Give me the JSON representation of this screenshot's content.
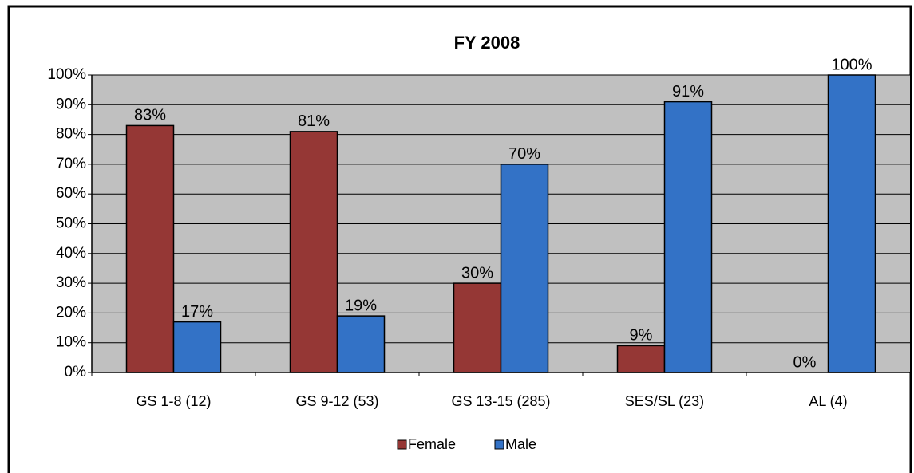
{
  "chart_data": {
    "type": "bar",
    "title": "FY 2008",
    "categories": [
      "GS 1-8 (12)",
      "GS 9-12 (53)",
      "GS 13-15 (285)",
      "SES/SL (23)",
      "AL (4)"
    ],
    "series": [
      {
        "name": "Female",
        "color": "#953735",
        "values": [
          83,
          81,
          30,
          9,
          0
        ],
        "value_labels": [
          "83%",
          "81%",
          "30%",
          "9%",
          "0%"
        ]
      },
      {
        "name": "Male",
        "color": "#3372c6",
        "values": [
          17,
          19,
          70,
          91,
          100
        ],
        "value_labels": [
          "17%",
          "19%",
          "70%",
          "91%",
          "100%"
        ]
      }
    ],
    "ylim": [
      0,
      100
    ],
    "yticks": [
      {
        "value": 0,
        "label": "0%"
      },
      {
        "value": 10,
        "label": "10%"
      },
      {
        "value": 20,
        "label": "20%"
      },
      {
        "value": 30,
        "label": "30%"
      },
      {
        "value": 40,
        "label": "40%"
      },
      {
        "value": 50,
        "label": "50%"
      },
      {
        "value": 60,
        "label": "60%"
      },
      {
        "value": 70,
        "label": "70%"
      },
      {
        "value": 80,
        "label": "80%"
      },
      {
        "value": 90,
        "label": "90%"
      },
      {
        "value": 100,
        "label": "100%"
      }
    ],
    "grid": true,
    "legend": "bottom",
    "plot_background": "#c0c0c0"
  }
}
